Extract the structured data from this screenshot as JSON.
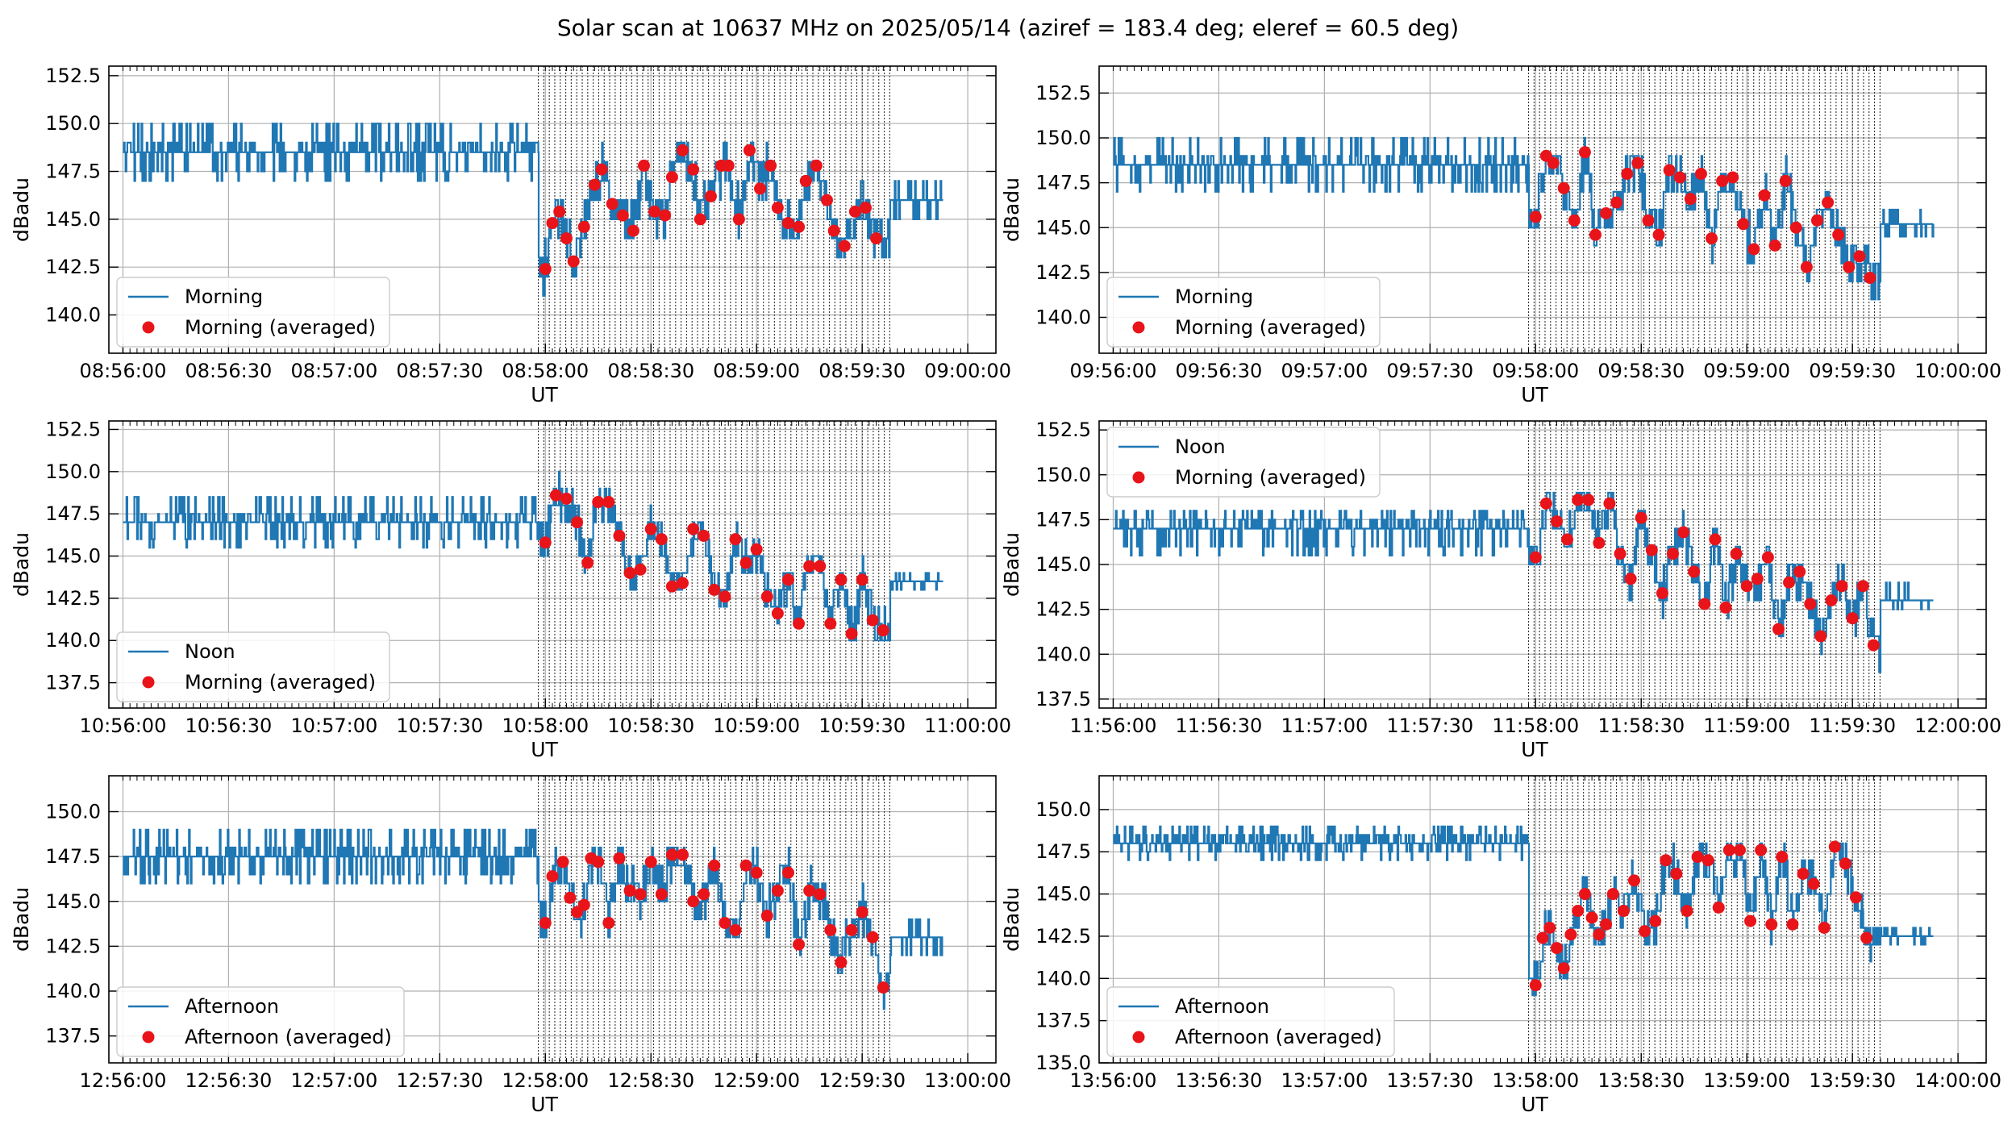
{
  "figure": {
    "title": "Solar scan at 10637 MHz on 2025/05/14 (aziref = 183.4 deg; eleref = 60.5 deg)"
  },
  "colors": {
    "series_line": "#1f77b4",
    "averaged_marker": "#e8141a",
    "grid": "#b0b0b0",
    "marker_lines": "#333333"
  },
  "chart_data": [
    {
      "type": "line",
      "xlabel": "UT",
      "ylabel": "dBadu",
      "x_start": "08:56:00",
      "x_end": "09:00:00",
      "x_ticks": [
        "08:56:00",
        "08:56:30",
        "08:57:00",
        "08:57:30",
        "08:58:00",
        "08:58:30",
        "08:59:00",
        "08:59:30",
        "09:00:00"
      ],
      "ylim": [
        138.0,
        153.0
      ],
      "y_ticks": [
        140.0,
        142.5,
        145.0,
        147.5,
        150.0,
        152.5
      ],
      "legend": {
        "placement": "lower-left",
        "line": "Morning",
        "dots": "Morning (averaged)"
      },
      "grid": true,
      "baseline": {
        "x_from_s": 0,
        "x_to_s": 118,
        "level": 148.5,
        "low": 147.5,
        "high": 150.0
      },
      "scan": {
        "x_from_s": 118,
        "x_to_s": 218,
        "end_level": 146.0,
        "end_low": 145.0,
        "end_high": 147.0
      },
      "averaged": {
        "x_s": [
          120,
          122,
          124,
          126,
          128,
          131,
          134,
          136,
          139,
          142,
          145,
          148,
          151,
          154,
          156,
          159,
          162,
          164,
          167,
          170,
          172,
          175,
          178,
          181,
          184,
          186,
          189,
          192,
          194,
          197,
          200,
          202,
          205,
          208,
          211,
          214
        ],
        "y": [
          142.4,
          144.8,
          145.4,
          144.0,
          142.8,
          144.6,
          146.8,
          147.6,
          145.8,
          145.2,
          144.4,
          147.8,
          145.4,
          145.2,
          147.2,
          148.6,
          147.6,
          145.0,
          146.2,
          147.8,
          147.8,
          145.0,
          148.6,
          146.6,
          147.8,
          145.6,
          144.8,
          144.6,
          147.0,
          147.8,
          146.0,
          144.4,
          143.6,
          145.4,
          145.6,
          144.0
        ]
      }
    },
    {
      "type": "line",
      "xlabel": "UT",
      "ylabel": "dBadu",
      "x_start": "09:56:00",
      "x_end": "10:00:00",
      "x_ticks": [
        "09:56:00",
        "09:56:30",
        "09:57:00",
        "09:57:30",
        "09:58:00",
        "09:58:30",
        "09:59:00",
        "09:59:30",
        "10:00:00"
      ],
      "ylim": [
        138.0,
        154.0
      ],
      "y_ticks": [
        140.0,
        142.5,
        145.0,
        147.5,
        150.0,
        152.5
      ],
      "legend": {
        "placement": "lower-left",
        "line": "Morning",
        "dots": "Morning (averaged)"
      },
      "grid": true,
      "baseline": {
        "x_from_s": 0,
        "x_to_s": 118,
        "level": 148.5,
        "low": 147.5,
        "high": 150.0
      },
      "scan": {
        "x_from_s": 118,
        "x_to_s": 218,
        "end_level": 145.2,
        "end_low": 144.5,
        "end_high": 146.0
      },
      "averaged": {
        "x_s": [
          120,
          123,
          125,
          128,
          131,
          134,
          137,
          140,
          143,
          146,
          149,
          152,
          155,
          158,
          161,
          164,
          167,
          170,
          173,
          176,
          179,
          182,
          185,
          188,
          191,
          194,
          197,
          200,
          203,
          206,
          209,
          212,
          215
        ],
        "y": [
          145.6,
          149.0,
          148.6,
          147.2,
          145.4,
          149.2,
          144.6,
          145.8,
          146.4,
          148.0,
          148.6,
          145.4,
          144.6,
          148.2,
          147.8,
          146.6,
          148.0,
          144.4,
          147.6,
          147.8,
          145.2,
          143.8,
          146.8,
          144.0,
          147.6,
          145.0,
          142.8,
          145.4,
          146.4,
          144.6,
          142.8,
          143.4,
          142.2
        ]
      }
    },
    {
      "type": "line",
      "xlabel": "UT",
      "ylabel": "dBadu",
      "x_start": "10:56:00",
      "x_end": "11:00:00",
      "x_ticks": [
        "10:56:00",
        "10:56:30",
        "10:57:00",
        "10:57:30",
        "10:58:00",
        "10:58:30",
        "10:59:00",
        "10:59:30",
        "11:00:00"
      ],
      "ylim": [
        136.0,
        153.0
      ],
      "y_ticks": [
        137.5,
        140.0,
        142.5,
        145.0,
        147.5,
        150.0,
        152.5
      ],
      "legend": {
        "placement": "lower-left",
        "line": "Noon",
        "dots": "Morning (averaged)"
      },
      "grid": true,
      "baseline": {
        "x_from_s": 0,
        "x_to_s": 118,
        "level": 147.0,
        "low": 146.0,
        "high": 148.5
      },
      "scan": {
        "x_from_s": 118,
        "x_to_s": 218,
        "end_level": 143.5,
        "end_low": 143.0,
        "end_high": 144.0
      },
      "averaged": {
        "x_s": [
          120,
          123,
          126,
          129,
          132,
          135,
          138,
          141,
          144,
          147,
          150,
          153,
          156,
          159,
          162,
          165,
          168,
          171,
          174,
          177,
          180,
          183,
          186,
          189,
          192,
          195,
          198,
          201,
          204,
          207,
          210,
          213,
          216
        ],
        "y": [
          145.8,
          148.6,
          148.4,
          147.0,
          144.6,
          148.2,
          148.2,
          146.2,
          144.0,
          144.2,
          146.6,
          146.0,
          143.2,
          143.4,
          146.6,
          146.2,
          143.0,
          142.6,
          146.0,
          144.6,
          145.4,
          142.6,
          141.6,
          143.6,
          141.0,
          144.4,
          144.4,
          141.0,
          143.6,
          140.4,
          143.6,
          141.2,
          140.6
        ]
      }
    },
    {
      "type": "line",
      "xlabel": "UT",
      "ylabel": "dBadu",
      "x_start": "11:56:00",
      "x_end": "12:00:00",
      "x_ticks": [
        "11:56:00",
        "11:56:30",
        "11:57:00",
        "11:57:30",
        "11:58:00",
        "11:58:30",
        "11:59:00",
        "11:59:30",
        "12:00:00"
      ],
      "ylim": [
        137.0,
        153.0
      ],
      "y_ticks": [
        137.5,
        140.0,
        142.5,
        145.0,
        147.5,
        150.0,
        152.5
      ],
      "legend": {
        "placement": "upper-left",
        "line": "Noon",
        "dots": "Morning (averaged)"
      },
      "grid": true,
      "baseline": {
        "x_from_s": 0,
        "x_to_s": 118,
        "level": 147.0,
        "low": 146.0,
        "high": 148.0
      },
      "scan": {
        "x_from_s": 118,
        "x_to_s": 218,
        "end_level": 143.0,
        "end_low": 142.5,
        "end_high": 144.0
      },
      "averaged": {
        "x_s": [
          120,
          123,
          126,
          129,
          132,
          135,
          138,
          141,
          144,
          147,
          150,
          153,
          156,
          159,
          162,
          165,
          168,
          171,
          174,
          177,
          180,
          183,
          186,
          189,
          192,
          195,
          198,
          201,
          204,
          207,
          210,
          213,
          216
        ],
        "y": [
          145.4,
          148.4,
          147.4,
          146.4,
          148.6,
          148.6,
          146.2,
          148.4,
          145.6,
          144.2,
          147.6,
          145.8,
          143.4,
          145.6,
          146.8,
          144.6,
          142.8,
          146.4,
          142.6,
          145.6,
          143.8,
          144.2,
          145.4,
          141.4,
          144.0,
          144.6,
          142.8,
          141.0,
          143.0,
          143.8,
          142.0,
          143.8,
          140.5
        ]
      }
    },
    {
      "type": "line",
      "xlabel": "UT",
      "ylabel": "dBadu",
      "x_start": "12:56:00",
      "x_end": "13:00:00",
      "x_ticks": [
        "12:56:00",
        "12:56:30",
        "12:57:00",
        "12:57:30",
        "12:58:00",
        "12:58:30",
        "12:59:00",
        "12:59:30",
        "13:00:00"
      ],
      "ylim": [
        136.0,
        152.0
      ],
      "y_ticks": [
        137.5,
        140.0,
        142.5,
        145.0,
        147.5,
        150.0
      ],
      "legend": {
        "placement": "lower-left",
        "line": "Afternoon",
        "dots": "Afternoon (averaged)"
      },
      "grid": true,
      "baseline": {
        "x_from_s": 0,
        "x_to_s": 118,
        "level": 147.5,
        "low": 146.5,
        "high": 149.0
      },
      "scan": {
        "x_from_s": 118,
        "x_to_s": 218,
        "end_level": 143.0,
        "end_low": 142.0,
        "end_high": 144.0
      },
      "averaged": {
        "x_s": [
          120,
          122,
          125,
          127,
          129,
          131,
          133,
          135,
          138,
          141,
          144,
          147,
          150,
          153,
          156,
          159,
          162,
          165,
          168,
          171,
          174,
          177,
          180,
          183,
          186,
          189,
          192,
          195,
          198,
          201,
          204,
          207,
          210,
          213,
          216
        ],
        "y": [
          143.8,
          146.4,
          147.2,
          145.2,
          144.4,
          144.8,
          147.4,
          147.2,
          143.8,
          147.4,
          145.6,
          145.4,
          147.2,
          145.4,
          147.6,
          147.6,
          145.0,
          145.4,
          147.0,
          143.8,
          143.4,
          147.0,
          146.6,
          144.2,
          145.6,
          146.6,
          142.6,
          145.6,
          145.4,
          143.4,
          141.6,
          143.4,
          144.4,
          143.0,
          140.2
        ]
      }
    },
    {
      "type": "line",
      "xlabel": "UT",
      "ylabel": "dBadu",
      "x_start": "13:56:00",
      "x_end": "14:00:00",
      "x_ticks": [
        "13:56:00",
        "13:56:30",
        "13:57:00",
        "13:57:30",
        "13:58:00",
        "13:58:30",
        "13:59:00",
        "13:59:30",
        "14:00:00"
      ],
      "ylim": [
        135.0,
        152.0
      ],
      "y_ticks": [
        135.0,
        137.5,
        140.0,
        142.5,
        145.0,
        147.5,
        150.0
      ],
      "legend": {
        "placement": "lower-left",
        "line": "Afternoon",
        "dots": "Afternoon (averaged)"
      },
      "grid": true,
      "baseline": {
        "x_from_s": 0,
        "x_to_s": 118,
        "level": 148.0,
        "low": 147.5,
        "high": 149.0
      },
      "scan": {
        "x_from_s": 118,
        "x_to_s": 218,
        "end_level": 142.5,
        "end_low": 142.0,
        "end_high": 143.0
      },
      "averaged": {
        "x_s": [
          120,
          122,
          124,
          126,
          128,
          130,
          132,
          134,
          136,
          138,
          140,
          142,
          145,
          148,
          151,
          154,
          157,
          160,
          163,
          166,
          169,
          172,
          175,
          178,
          181,
          184,
          187,
          190,
          193,
          196,
          199,
          202,
          205,
          208,
          211,
          214
        ],
        "y": [
          139.6,
          142.4,
          143.0,
          141.8,
          140.6,
          142.6,
          144.0,
          145.0,
          143.6,
          142.6,
          143.2,
          145.0,
          144.0,
          145.8,
          142.8,
          143.4,
          147.0,
          146.2,
          144.0,
          147.2,
          147.0,
          144.2,
          147.6,
          147.6,
          143.4,
          147.6,
          143.2,
          147.2,
          143.2,
          146.2,
          145.6,
          143.0,
          147.8,
          146.8,
          144.8,
          142.4
        ]
      }
    }
  ]
}
